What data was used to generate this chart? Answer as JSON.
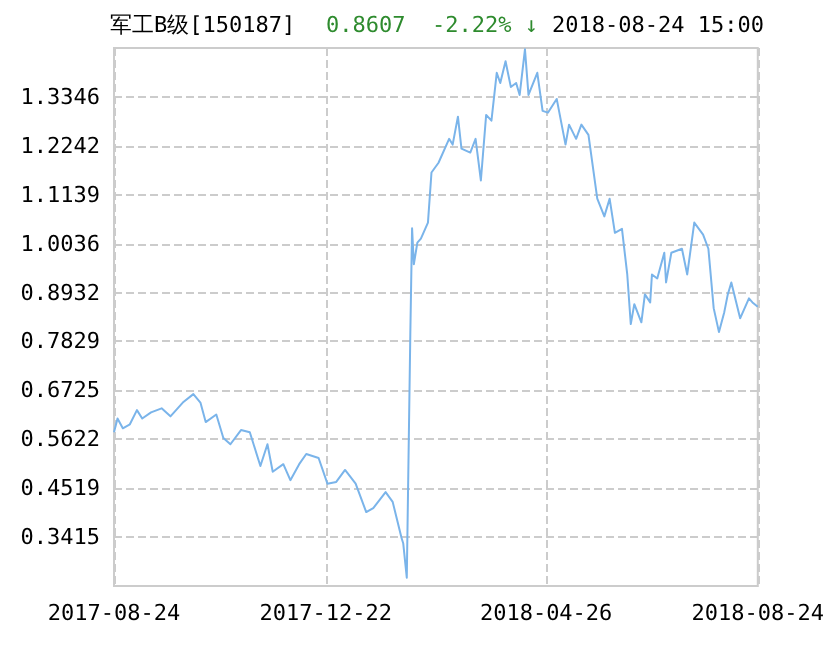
{
  "chart_data": {
    "type": "line",
    "title": "军工B级[150187]",
    "annotations": [
      "0.8607  -2.22% ↓",
      "2018-08-24 15:00"
    ],
    "x": [
      "2017-08-24",
      "2017-08-26",
      "2017-08-29",
      "2017-09-02",
      "2017-09-06",
      "2017-09-09",
      "2017-09-14",
      "2017-09-20",
      "2017-09-25",
      "2017-10-02",
      "2017-10-08",
      "2017-10-12",
      "2017-10-15",
      "2017-10-21",
      "2017-10-25",
      "2017-10-29",
      "2017-11-04",
      "2017-11-09",
      "2017-11-15",
      "2017-11-19",
      "2017-11-22",
      "2017-11-28",
      "2017-12-02",
      "2017-12-07",
      "2017-12-11",
      "2017-12-18",
      "2017-12-23",
      "2017-12-28",
      "2018-01-02",
      "2018-01-08",
      "2018-01-14",
      "2018-01-18",
      "2018-01-25",
      "2018-01-29",
      "2018-02-03",
      "2018-02-04",
      "2018-02-06",
      "2018-02-08",
      "2018-02-09",
      "2018-02-10",
      "2018-02-12",
      "2018-02-14",
      "2018-02-18",
      "2018-02-20",
      "2018-02-24",
      "2018-03-02",
      "2018-03-04",
      "2018-03-07",
      "2018-03-09",
      "2018-03-14",
      "2018-03-17",
      "2018-03-20",
      "2018-03-23",
      "2018-03-26",
      "2018-03-29",
      "2018-03-31",
      "2018-04-03",
      "2018-04-06",
      "2018-04-09",
      "2018-04-11",
      "2018-04-14",
      "2018-04-16",
      "2018-04-21",
      "2018-04-24",
      "2018-04-27",
      "2018-05-02",
      "2018-05-07",
      "2018-05-09",
      "2018-05-13",
      "2018-05-16",
      "2018-05-20",
      "2018-05-25",
      "2018-05-29",
      "2018-06-01",
      "2018-06-04",
      "2018-06-08",
      "2018-06-11",
      "2018-06-13",
      "2018-06-15",
      "2018-06-19",
      "2018-06-21",
      "2018-06-24",
      "2018-06-25",
      "2018-06-28",
      "2018-07-02",
      "2018-07-03",
      "2018-07-06",
      "2018-07-12",
      "2018-07-15",
      "2018-07-19",
      "2018-07-24",
      "2018-07-27",
      "2018-07-30",
      "2018-08-02",
      "2018-08-05",
      "2018-08-07",
      "2018-08-09",
      "2018-08-14",
      "2018-08-19",
      "2018-08-21",
      "2018-08-24"
    ],
    "series": [
      {
        "color": "#7ab4ea",
        "values": [
          0.578,
          0.609,
          0.587,
          0.596,
          0.628,
          0.609,
          0.623,
          0.632,
          0.614,
          0.645,
          0.664,
          0.645,
          0.601,
          0.618,
          0.565,
          0.551,
          0.583,
          0.578,
          0.502,
          0.551,
          0.489,
          0.506,
          0.47,
          0.506,
          0.529,
          0.52,
          0.462,
          0.466,
          0.493,
          0.462,
          0.398,
          0.407,
          0.443,
          0.421,
          0.34,
          0.327,
          0.25,
          0.799,
          1.038,
          0.957,
          1.006,
          1.015,
          1.051,
          1.164,
          1.186,
          1.24,
          1.227,
          1.29,
          1.218,
          1.209,
          1.24,
          1.146,
          1.294,
          1.281,
          1.389,
          1.366,
          1.415,
          1.357,
          1.366,
          1.339,
          1.442,
          1.339,
          1.389,
          1.303,
          1.299,
          1.33,
          1.227,
          1.272,
          1.24,
          1.272,
          1.249,
          1.105,
          1.065,
          1.105,
          1.028,
          1.037,
          0.934,
          0.822,
          0.867,
          0.826,
          0.889,
          0.871,
          0.934,
          0.925,
          0.983,
          0.916,
          0.983,
          0.992,
          0.934,
          1.051,
          1.024,
          0.992,
          0.858,
          0.804,
          0.849,
          0.889,
          0.916,
          0.835,
          0.88,
          0.871,
          0.861
        ]
      }
    ],
    "xlim": [
      "2017-08-24",
      "2018-08-24"
    ],
    "xticks": [
      "2017-08-24",
      "2017-12-22",
      "2018-04-26",
      "2018-08-24"
    ],
    "ylim": [
      0.2312,
      1.4449
    ],
    "yticks": [
      0.3415,
      0.4519,
      0.5622,
      0.6725,
      0.7829,
      0.8932,
      1.0036,
      1.1139,
      1.2242,
      1.3346
    ],
    "grid": true,
    "marker": "none",
    "line_style": "solid"
  }
}
